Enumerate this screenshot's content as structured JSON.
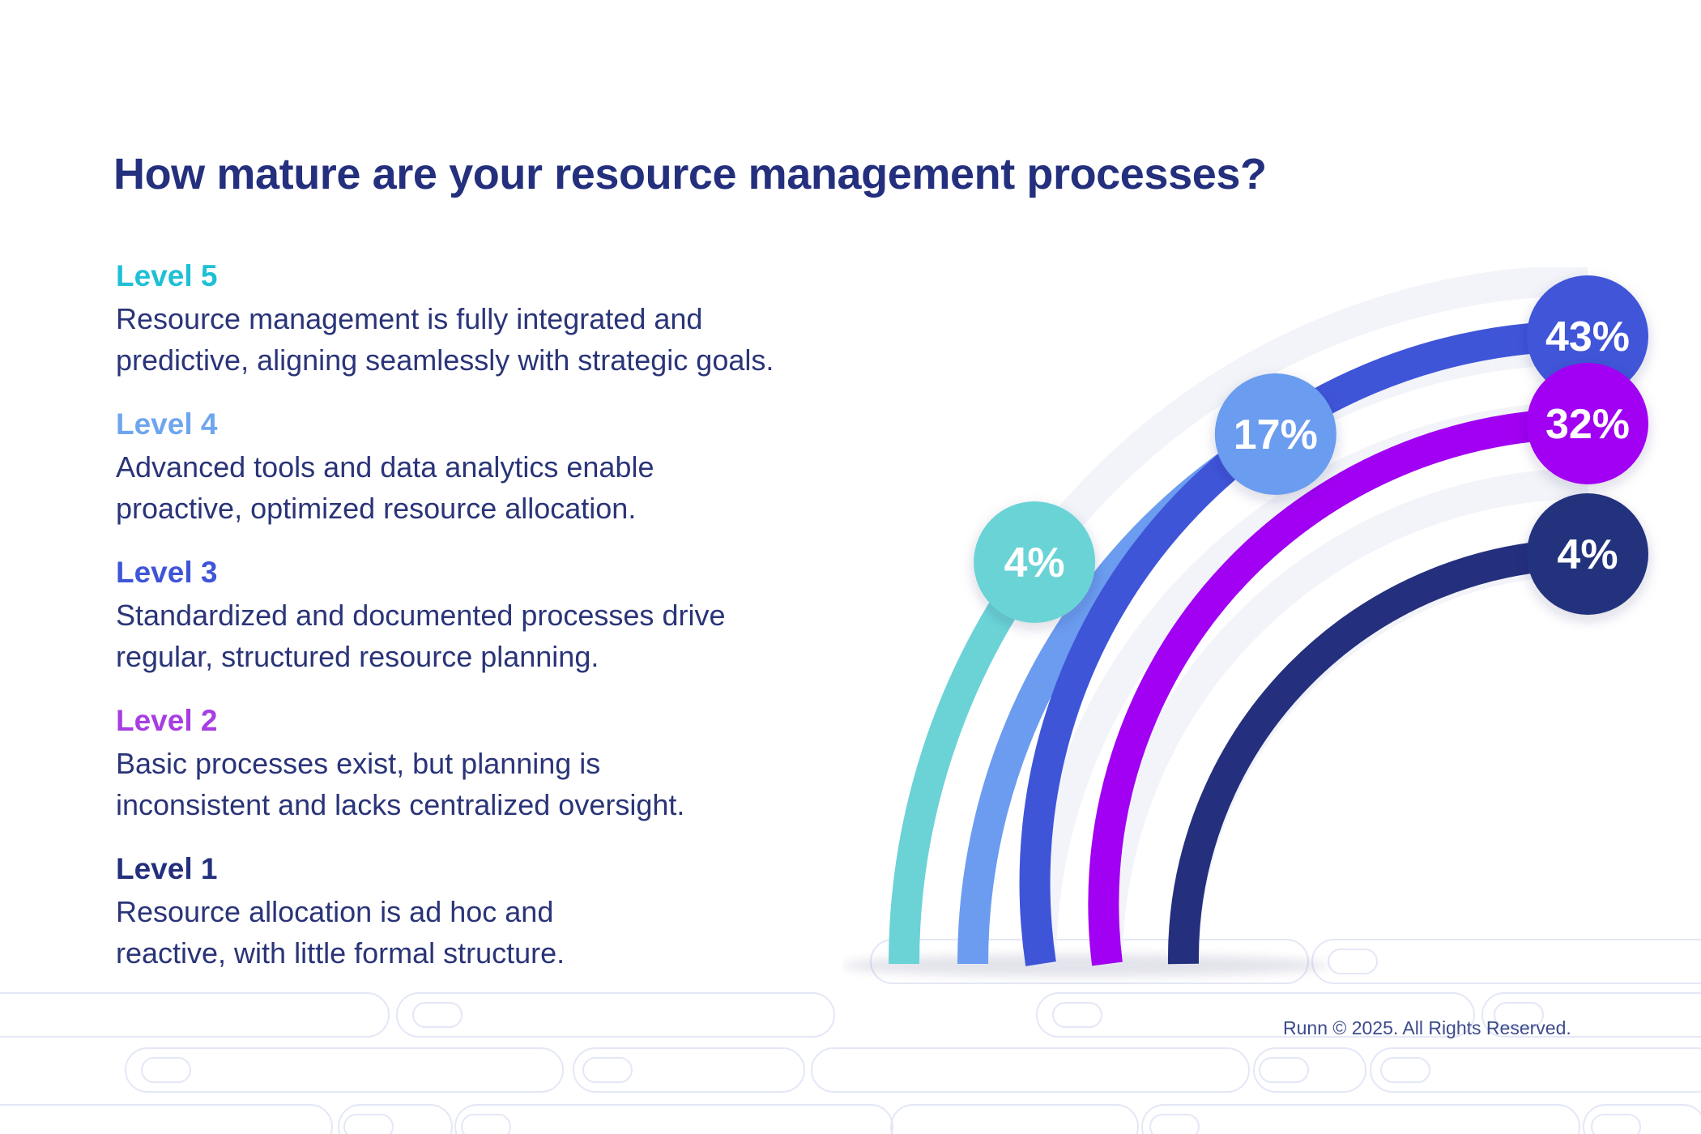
{
  "title": "How mature are your resource management processes?",
  "levels": [
    {
      "name": "Level 5",
      "color": "#1fc0d6",
      "description": [
        "Resource management is fully integrated and",
        "predictive, aligning seamlessly with strategic goals."
      ]
    },
    {
      "name": "Level 4",
      "color": "#6ea6ee",
      "description": [
        "Advanced tools and data analytics enable",
        "proactive, optimized resource allocation."
      ]
    },
    {
      "name": "Level 3",
      "color": "#3f55d8",
      "description": [
        "Standardized and documented processes drive",
        "regular, structured resource planning."
      ]
    },
    {
      "name": "Level 2",
      "color": "#a73ee2",
      "description": [
        "Basic processes exist, but planning is",
        "inconsistent and lacks centralized oversight."
      ]
    },
    {
      "name": "Level 1",
      "color": "#24307d",
      "description": [
        "Resource allocation is ad hoc and",
        "reactive, with little formal structure."
      ]
    }
  ],
  "chart_data": {
    "type": "bar",
    "categories": [
      "Level 5",
      "Level 4",
      "Level 3",
      "Level 2",
      "Level 1"
    ],
    "values": [
      4,
      17,
      43,
      32,
      4
    ],
    "value_labels": [
      "4%",
      "17%",
      "43%",
      "32%",
      "4%"
    ],
    "unit": "%",
    "colors": [
      "#6bd3d6",
      "#6b9cef",
      "#3f55d8",
      "#a100f2",
      "#24307d"
    ]
  },
  "footer": "Runn © 2025. All Rights Reserved."
}
